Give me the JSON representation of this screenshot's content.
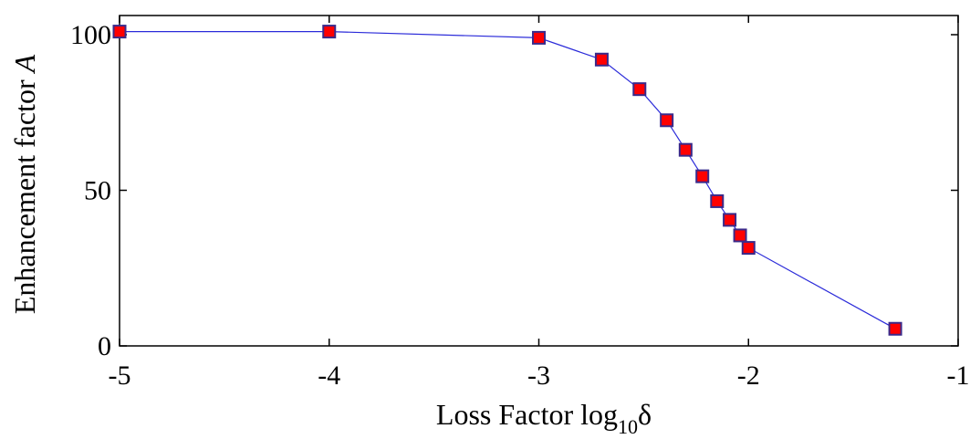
{
  "chart_data": {
    "type": "line",
    "xlabel_main": "Loss Factor log",
    "xlabel_sub": "10",
    "xlabel_symbol": "δ",
    "ylabel_main": "Enhancement factor ",
    "ylabel_var": "A",
    "xlim": [
      -5,
      -1
    ],
    "ylim": [
      0,
      110
    ],
    "xticks": [
      -5,
      -4,
      -3,
      -2,
      -1
    ],
    "xtick_labels": [
      "-5",
      "-4",
      "-3",
      "-2",
      "-1"
    ],
    "yticks": [
      0,
      50,
      100
    ],
    "ytick_labels": [
      "0",
      "50",
      "100"
    ],
    "grid": false,
    "legend": "none",
    "series": [
      {
        "line_color": "#2b2bd9",
        "marker": "square",
        "marker_fill": "#ff0000",
        "marker_edge": "#3a2a8a",
        "x": [
          -5.0,
          -4.0,
          -3.0,
          -2.7,
          -2.52,
          -2.39,
          -2.3,
          -2.22,
          -2.15,
          -2.09,
          -2.04,
          -2.0,
          -1.3
        ],
        "y": [
          101,
          101,
          99,
          92,
          82.5,
          72.5,
          63,
          54.5,
          46.5,
          40.5,
          35.5,
          31.5,
          5.5
        ]
      }
    ]
  }
}
